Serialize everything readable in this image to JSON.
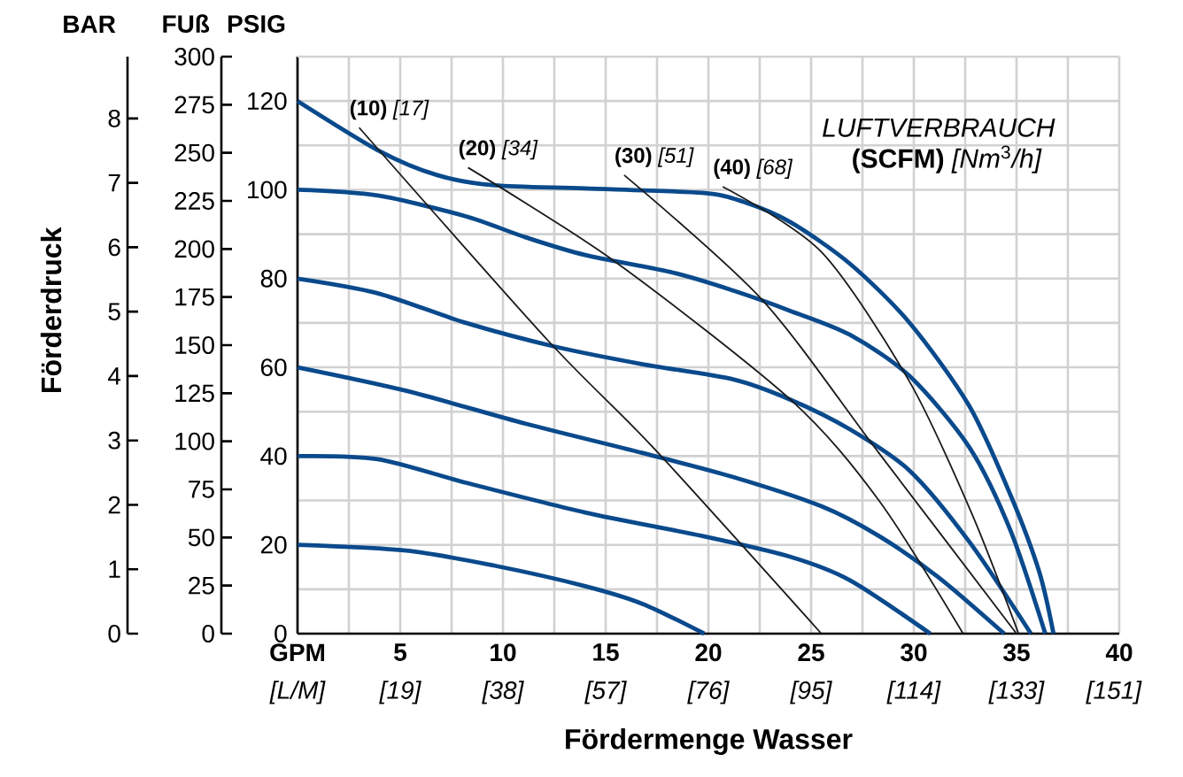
{
  "chart_data": {
    "type": "line",
    "xlabel": "Fördermenge Wasser",
    "ylabel": "PSIG",
    "y2label": "FUß",
    "y3label": "BAR",
    "annotations": [
      "Förderdruck",
      "*LUFTVERBRAUCH*",
      "**(SCFM)** *[Nm*$^{3}$*/h]*"
    ],
    "xlim": [
      0,
      40
    ],
    "xticks": [
      {
        "value": 0,
        "label": "GPM"
      },
      5,
      10,
      15,
      20,
      25,
      30,
      35,
      40
    ],
    "x2lim": [
      0,
      152
    ],
    "x2ticks": [
      {
        "value": 0,
        "label": "[L/M]"
      },
      {
        "value": 19,
        "label": "[19]"
      },
      {
        "value": 38,
        "label": "[38]"
      },
      {
        "value": 57,
        "label": "[57]"
      },
      {
        "value": 76,
        "label": "[76]"
      },
      {
        "value": 95,
        "label": "[95]"
      },
      {
        "value": 114,
        "label": "[114]"
      },
      {
        "value": 133,
        "label": "[133]"
      },
      {
        "value": 151,
        "label": "[151]"
      }
    ],
    "ylim": [
      0,
      130
    ],
    "yticks": [
      0,
      20,
      40,
      60,
      80,
      100,
      120
    ],
    "y2lim": [
      0,
      300
    ],
    "y2ticks": [
      0,
      25,
      50,
      75,
      100,
      125,
      150,
      175,
      200,
      225,
      250,
      275,
      300
    ],
    "y3lim": [
      0,
      8.96
    ],
    "y3ticks": [
      0,
      1,
      2,
      3,
      4,
      5,
      6,
      7,
      8
    ],
    "grid": true,
    "marker": "none",
    "line_style": "solid",
    "series": [
      {
        "color": "#0a4a8c",
        "x": [
          0,
          5.3,
          9.6,
          14,
          16.8,
          19.8
        ],
        "values": [
          20,
          18.7,
          15.3,
          10.7,
          6.7,
          0
        ]
      },
      {
        "color": "#0a4a8c",
        "x": [
          0,
          3.9,
          8.2,
          14,
          19.7,
          24,
          26.9,
          30.8
        ],
        "values": [
          40,
          39.3,
          34,
          27.3,
          22,
          17.3,
          12,
          0
        ]
      },
      {
        "color": "#0a4a8c",
        "x": [
          0,
          5.3,
          11.1,
          16.8,
          21.2,
          25.5,
          28.3,
          31.2,
          34.4
        ],
        "values": [
          60,
          54.7,
          47.3,
          40.7,
          35.3,
          28.7,
          22,
          12.7,
          0
        ]
      },
      {
        "color": "#0a4a8c",
        "x": [
          0,
          3.9,
          8.2,
          12.5,
          16.8,
          21.2,
          24,
          26.9,
          29.8,
          32.7,
          35.7
        ],
        "values": [
          80,
          76.7,
          70,
          64.7,
          60.7,
          57.3,
          52.7,
          46,
          36.7,
          20.7,
          0
        ]
      },
      {
        "color": "#0a4a8c",
        "x": [
          0,
          3.9,
          8.2,
          11.1,
          14,
          18.3,
          21.2,
          24,
          26.9,
          29.8,
          32.7,
          34.7,
          36.4
        ],
        "values": [
          100,
          98.7,
          94,
          89.3,
          85.3,
          81.3,
          77.3,
          72.7,
          67.3,
          58,
          42,
          23.3,
          0
        ]
      },
      {
        "color": "#0a4a8c",
        "x": [
          0,
          4,
          6.8,
          9.6,
          14,
          19.7,
          21.7,
          24,
          26.9,
          29.8,
          32.7,
          34.7,
          36.1,
          36.8
        ],
        "values": [
          120,
          108.7,
          103.3,
          101,
          100.3,
          99.3,
          97.3,
          92.7,
          83.3,
          70,
          51.3,
          31.3,
          14,
          0
        ]
      },
      {
        "name": "**(10)** *[17]*",
        "color": "#1a1a1a",
        "x": [
          3,
          12.2,
          17.3,
          25.5
        ],
        "values": [
          114,
          66,
          42,
          0
        ]
      },
      {
        "name": "**(20)** *[34]*",
        "color": "#1a1a1a",
        "x": [
          8.3,
          15.4,
          24,
          28.3,
          32.4
        ],
        "values": [
          105,
          84,
          52.7,
          30,
          0
        ]
      },
      {
        "name": "**(30)** *[51]*",
        "color": "#1a1a1a",
        "x": [
          15.9,
          22.6,
          28.3,
          35
        ],
        "values": [
          103.3,
          75.3,
          40.7,
          0
        ]
      },
      {
        "name": "**(40)** *[68]*",
        "color": "#1a1a1a",
        "x": [
          20.7,
          25.5,
          29.8,
          32.8,
          35.1
        ],
        "values": [
          100.7,
          86,
          56.7,
          27.3,
          0
        ]
      }
    ]
  }
}
